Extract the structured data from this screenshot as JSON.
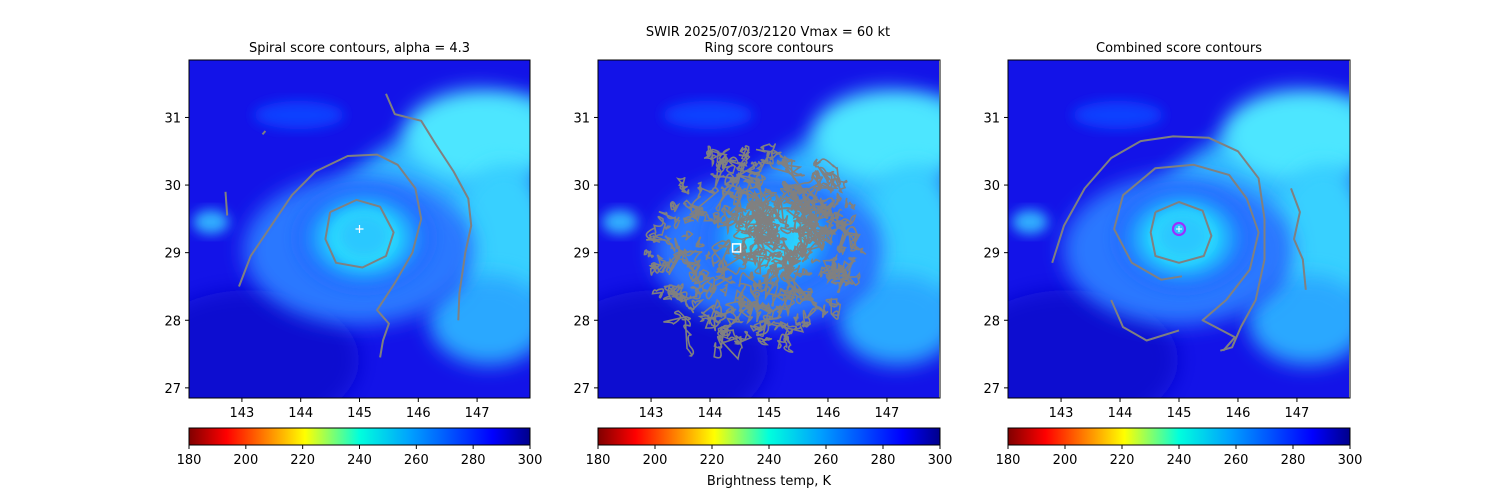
{
  "figure": {
    "suptitle_line1": "SWIR  2025/07/03/2120    Vmax = 60 kt",
    "colorbar_label": "Brightness temp, K"
  },
  "chart_data": [
    {
      "type": "heatmap",
      "title": "Spiral score contours, alpha =  4.3",
      "xlim": [
        142.1,
        147.9
      ],
      "ylim": [
        26.85,
        31.85
      ],
      "xticks": [
        143,
        144,
        145,
        146,
        147
      ],
      "yticks": [
        27,
        28,
        29,
        30,
        31
      ],
      "center_marker": {
        "type": "plus",
        "lon": 145.0,
        "lat": 29.35,
        "color": "#ffffff"
      },
      "contours": [
        {
          "color": "#808080",
          "points": [
            [
              144.5,
              29.6
            ],
            [
              144.95,
              29.78
            ],
            [
              145.35,
              29.68
            ],
            [
              145.58,
              29.3
            ],
            [
              145.45,
              28.95
            ],
            [
              145.05,
              28.78
            ],
            [
              144.6,
              28.85
            ],
            [
              144.42,
              29.2
            ],
            [
              144.5,
              29.6
            ]
          ]
        },
        {
          "color": "#808080",
          "points": [
            [
              142.95,
              28.5
            ],
            [
              143.15,
              28.95
            ],
            [
              143.5,
              29.4
            ],
            [
              143.85,
              29.85
            ],
            [
              144.25,
              30.2
            ],
            [
              144.8,
              30.43
            ],
            [
              145.3,
              30.45
            ],
            [
              145.65,
              30.3
            ],
            [
              145.95,
              29.95
            ],
            [
              146.05,
              29.5
            ],
            [
              145.9,
              29.0
            ],
            [
              145.6,
              28.55
            ],
            [
              145.3,
              28.15
            ],
            [
              145.5,
              27.95
            ],
            [
              145.4,
              27.7
            ],
            [
              145.35,
              27.45
            ]
          ]
        },
        {
          "color": "#808080",
          "points": [
            [
              145.45,
              31.35
            ],
            [
              145.6,
              31.05
            ],
            [
              146.05,
              30.95
            ],
            [
              146.3,
              30.6
            ],
            [
              146.6,
              30.2
            ],
            [
              146.85,
              29.8
            ],
            [
              146.9,
              29.4
            ],
            [
              146.8,
              29.0
            ],
            [
              146.75,
              28.7
            ],
            [
              146.7,
              28.4
            ],
            [
              146.68,
              28.0
            ]
          ]
        },
        {
          "color": "#808080",
          "points": [
            [
              142.75,
              29.55
            ],
            [
              142.72,
              29.9
            ]
          ]
        },
        {
          "color": "#808080",
          "points": [
            [
              143.35,
              30.75
            ],
            [
              143.4,
              30.8
            ]
          ]
        }
      ],
      "colorbar": {
        "range": [
          180,
          300
        ],
        "ticks": [
          180,
          200,
          220,
          240,
          260,
          280,
          300
        ],
        "colormap": "jet_r"
      }
    },
    {
      "type": "heatmap",
      "title": "Ring score contours",
      "xlim": [
        142.1,
        147.9
      ],
      "ylim": [
        26.85,
        31.85
      ],
      "xticks": [
        143,
        144,
        145,
        146,
        147
      ],
      "yticks": [
        27,
        28,
        29,
        30,
        31
      ],
      "center_marker": {
        "type": "square",
        "lon": 144.45,
        "lat": 29.07,
        "color": "#ffffff"
      },
      "contour_regions": [
        {
          "color": "#808080",
          "lon": 144.75,
          "lat": 29.1,
          "rx_deg": 1.8,
          "ry_deg": 1.45,
          "rotation_deg": -25
        },
        {
          "color": "#808080",
          "lon": 145.35,
          "lat": 29.45,
          "rx_deg": 0.75,
          "ry_deg": 0.6,
          "rotation_deg": 0
        }
      ],
      "colorbar": {
        "range": [
          180,
          300
        ],
        "ticks": [
          180,
          200,
          220,
          240,
          260,
          280,
          300
        ],
        "colormap": "jet_r"
      }
    },
    {
      "type": "heatmap",
      "title": "Combined score contours",
      "xlim": [
        142.1,
        147.9
      ],
      "ylim": [
        26.85,
        31.85
      ],
      "xticks": [
        143,
        144,
        145,
        146,
        147
      ],
      "yticks": [
        27,
        28,
        29,
        30,
        31
      ],
      "center_marker": {
        "type": "circle",
        "lon": 145.0,
        "lat": 29.35,
        "color": "#9b30ff"
      },
      "contours": [
        {
          "color": "#808080",
          "points": [
            [
              144.6,
              29.6
            ],
            [
              145.0,
              29.75
            ],
            [
              145.4,
              29.62
            ],
            [
              145.55,
              29.25
            ],
            [
              145.42,
              28.95
            ],
            [
              145.0,
              28.85
            ],
            [
              144.6,
              28.95
            ],
            [
              144.52,
              29.3
            ],
            [
              144.6,
              29.6
            ]
          ]
        },
        {
          "color": "#808080",
          "points": [
            [
              145.05,
              28.65
            ],
            [
              144.7,
              28.6
            ],
            [
              144.2,
              28.85
            ],
            [
              143.9,
              29.35
            ],
            [
              144.05,
              29.85
            ],
            [
              144.6,
              30.25
            ],
            [
              145.25,
              30.3
            ],
            [
              145.85,
              30.15
            ],
            [
              146.15,
              29.8
            ],
            [
              146.35,
              29.3
            ],
            [
              146.2,
              28.75
            ],
            [
              145.8,
              28.3
            ],
            [
              145.4,
              28.0
            ],
            [
              145.95,
              27.75
            ],
            [
              145.75,
              27.55
            ]
          ]
        },
        {
          "color": "#808080",
          "points": [
            [
              142.85,
              28.85
            ],
            [
              143.05,
              29.4
            ],
            [
              143.4,
              29.95
            ],
            [
              143.85,
              30.4
            ],
            [
              144.35,
              30.65
            ],
            [
              144.9,
              30.72
            ],
            [
              145.5,
              30.7
            ],
            [
              146.0,
              30.5
            ],
            [
              146.35,
              30.1
            ],
            [
              146.45,
              29.5
            ],
            [
              146.45,
              28.9
            ],
            [
              146.3,
              28.3
            ],
            [
              146.05,
              27.9
            ],
            [
              145.9,
              27.6
            ],
            [
              145.7,
              27.55
            ]
          ]
        },
        {
          "color": "#808080",
          "points": [
            [
              143.85,
              28.3
            ],
            [
              144.05,
              27.9
            ],
            [
              144.45,
              27.7
            ],
            [
              145.0,
              27.85
            ]
          ]
        },
        {
          "color": "#808080",
          "points": [
            [
              146.9,
              29.95
            ],
            [
              147.05,
              29.6
            ],
            [
              146.95,
              29.2
            ],
            [
              147.1,
              28.9
            ],
            [
              147.15,
              28.45
            ]
          ]
        }
      ],
      "colorbar": {
        "range": [
          180,
          300
        ],
        "ticks": [
          180,
          200,
          220,
          240,
          260,
          280,
          300
        ],
        "colormap": "jet_r"
      }
    }
  ]
}
